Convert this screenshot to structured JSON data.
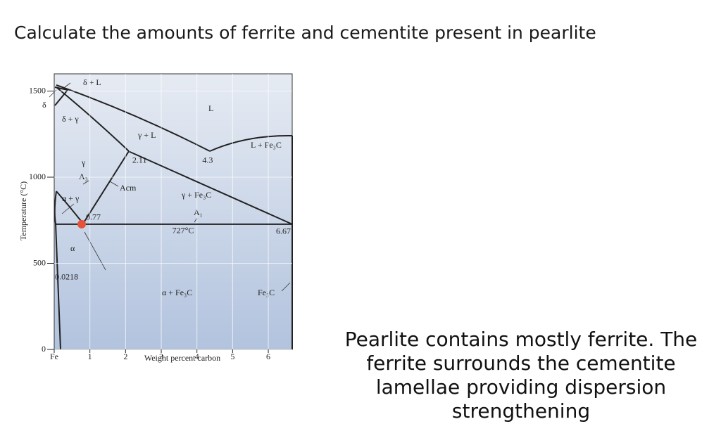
{
  "title": "Calculate the amounts of ferrite and cementite present in pearlite",
  "chart_data": {
    "type": "phase-diagram",
    "xlabel": "Weight percent carbon",
    "ylabel": "Temperature (°C)",
    "xlim": [
      0,
      6.67
    ],
    "ylim": [
      0,
      1600
    ],
    "xticks": [
      {
        "value": 0,
        "label": "Fe"
      },
      1,
      2,
      3,
      4,
      5,
      6
    ],
    "yticks": [
      0,
      500,
      1000,
      1500
    ],
    "grid": true,
    "region_labels": [
      "δ + L",
      "L",
      "δ + γ",
      "γ + L",
      "L + Fe₃C",
      "γ",
      "A₃",
      "Acm",
      "α + γ",
      "γ + Fe₃C",
      "A₁",
      "α",
      "α + Fe₃C",
      "Fe₃C",
      "δ"
    ],
    "points": [
      {
        "x": 2.11,
        "y": 1148
      },
      {
        "x": 4.3,
        "y": 1148
      },
      {
        "x": 0.77,
        "y": 727
      },
      {
        "x": 6.67,
        "y": 727
      },
      {
        "x": 0.0218,
        "y": 727
      }
    ],
    "eutectoid_temperature": {
      "value": 727,
      "label": "727°C"
    },
    "highlight": {
      "point": 2,
      "color": "#e5533a"
    }
  },
  "note": "Pearlite contains mostly ferrite. The ferrite surrounds the cementite lamellae providing dispersion strengthening"
}
